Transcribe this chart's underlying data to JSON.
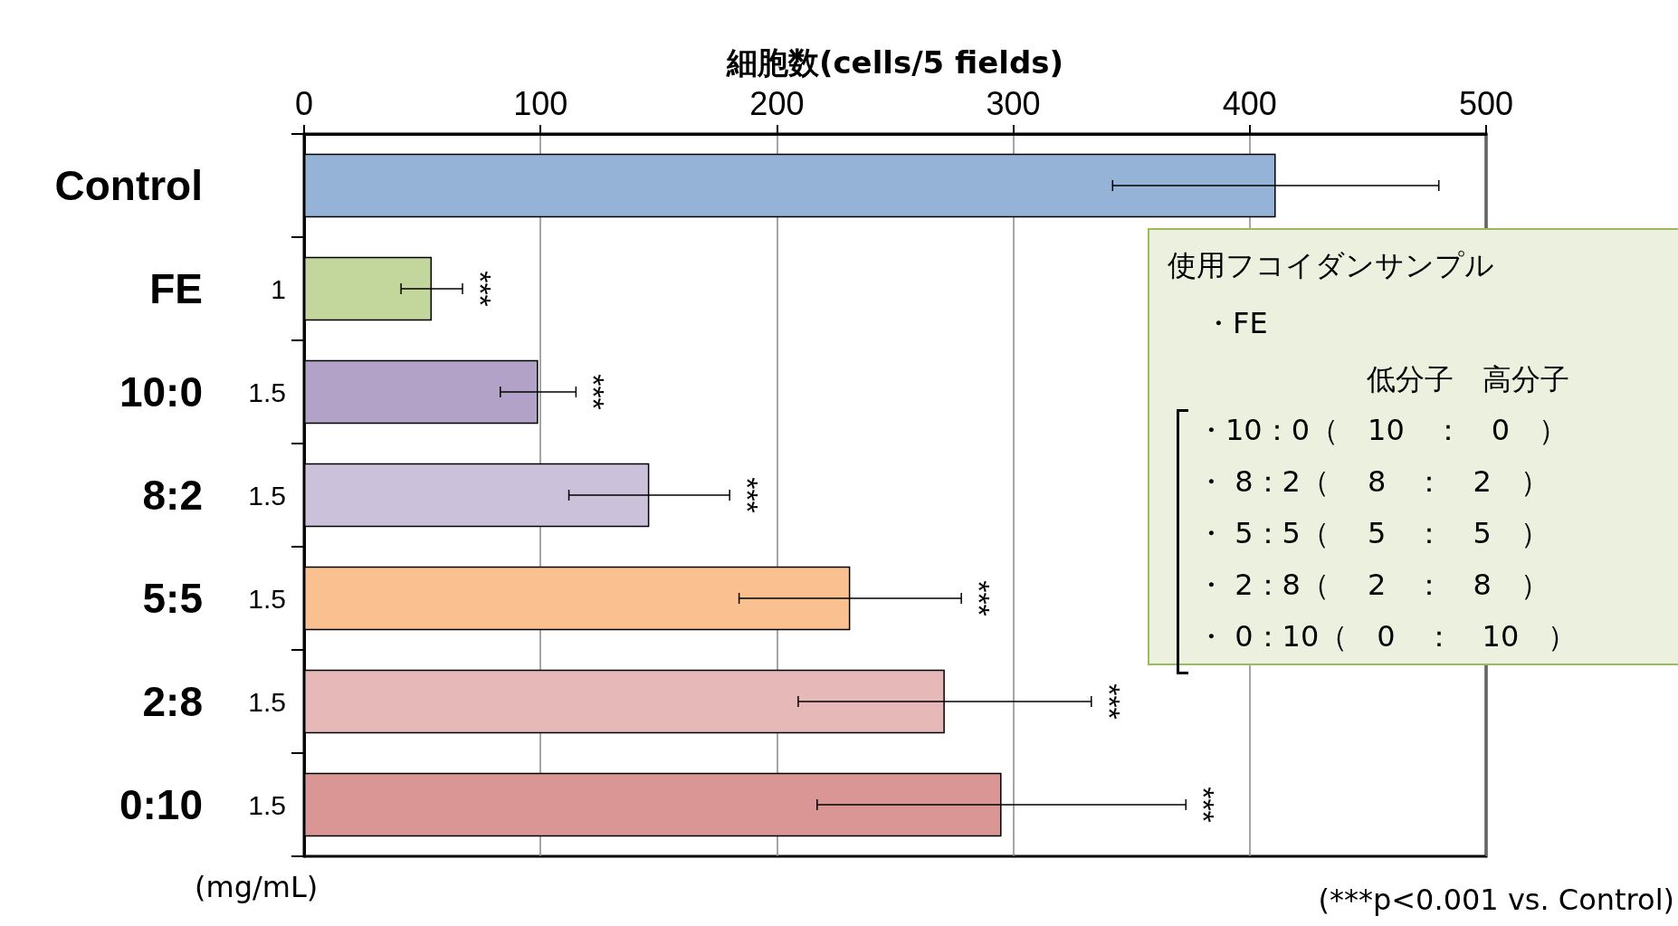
{
  "chart_data": {
    "type": "bar",
    "orientation": "horizontal",
    "xlabel": "細胞数(cells/5 fields)",
    "categories": [
      "Control",
      "FE",
      "10:0",
      "8:2",
      "5:5",
      "2:8",
      "0:10"
    ],
    "values": [
      411,
      54,
      99,
      146,
      231,
      271,
      295
    ],
    "errors": [
      69,
      13,
      16,
      34,
      47,
      62,
      78
    ],
    "colors": [
      "#95b3d7",
      "#c3d69b",
      "#b2a2c7",
      "#ccc1da",
      "#fac090",
      "#e6b9b8",
      "#d99694"
    ],
    "xlim": [
      0,
      500
    ],
    "xticks": [
      0,
      100,
      200,
      300,
      400,
      500
    ],
    "grid": "x",
    "annotations": [
      "1",
      "1.5",
      "1.5",
      "1.5",
      "1.5",
      "1.5",
      "(mg/mL)",
      "(***p<0.001 vs. Control)",
      "使用フコイダンサンプル",
      "・FE",
      "低分子　高分子",
      "・10：0（　10　：　0　）",
      "・ 8：2（　 8　：　2　）",
      "・ 5：5（　 5　：　5　）",
      "・ 2：8（　 2　：　8　）",
      "・ 0：10（　0　：　10　）",
      {
        "text": "***",
        "x": 67,
        "y": "FE"
      },
      {
        "text": "***",
        "x": 115,
        "y": "10:0"
      },
      {
        "text": "***",
        "x": 180,
        "y": "8:2"
      },
      {
        "text": "***",
        "x": 278,
        "y": "5:5"
      },
      {
        "text": "***",
        "x": 333,
        "y": "2:8"
      },
      {
        "text": "***",
        "x": 373,
        "y": "0:10"
      }
    ]
  }
}
